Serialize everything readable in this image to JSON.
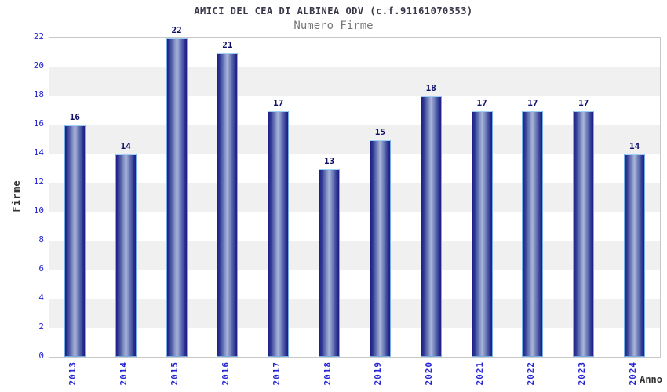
{
  "header": {
    "title": "AMICI DEL CEA DI ALBINEA ODV (c.f.91161070353)",
    "subtitle": "Numero Firme"
  },
  "chart_data": {
    "type": "bar",
    "title": "AMICI DEL CEA DI ALBINEA ODV (c.f.91161070353)",
    "subtitle": "Numero Firme",
    "categories": [
      "2013",
      "2014",
      "2015",
      "2016",
      "2017",
      "2018",
      "2019",
      "2020",
      "2021",
      "2022",
      "2023",
      "2024"
    ],
    "values": [
      16,
      14,
      22,
      21,
      17,
      13,
      15,
      18,
      17,
      17,
      17,
      14
    ],
    "xlabel": "Anno",
    "ylabel": "Firme",
    "ylim": [
      0,
      22
    ],
    "ytick_step": 2,
    "yticks": [
      0,
      2,
      4,
      6,
      8,
      10,
      12,
      14,
      16,
      18,
      20,
      22
    ],
    "grid": true,
    "band_pattern": "gray band between each pair (18-20, 14-16, 10-12, 6-8, 2-4)",
    "legend": null,
    "colors": {
      "bar_dark": "#1e1e85",
      "bar_light": "#aab6da",
      "bar_border": "#79aee3",
      "bar_cap": "#9ed1f5",
      "value_label": "#10106a",
      "tick_label": "#2525d6",
      "band": "#f0f0f0",
      "gridline": "#d9d9d9",
      "plot_border": "#c8c8c8",
      "title": "#38384a",
      "subtitle": "#787878",
      "axis_title": "#333333"
    }
  }
}
